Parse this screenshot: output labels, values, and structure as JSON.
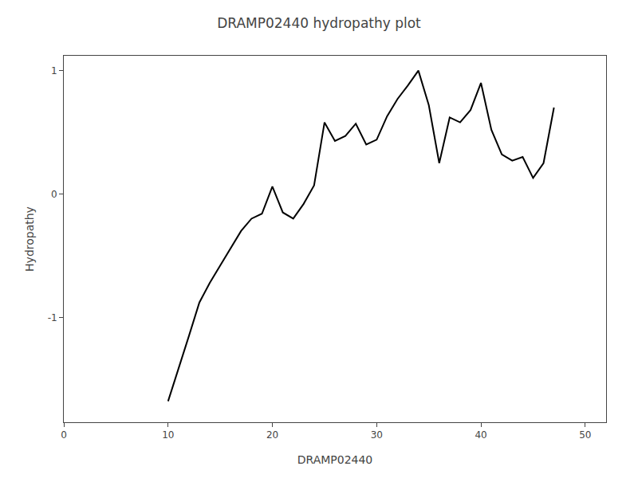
{
  "chart_data": {
    "type": "line",
    "title": "DRAMP02440 hydropathy plot",
    "xlabel": "DRAMP02440",
    "ylabel": "Hydropathy",
    "x": [
      10,
      11,
      12,
      13,
      14,
      15,
      16,
      17,
      18,
      19,
      20,
      21,
      22,
      23,
      24,
      25,
      26,
      27,
      28,
      29,
      30,
      31,
      32,
      33,
      34,
      35,
      36,
      37,
      38,
      39,
      40,
      41,
      42,
      43,
      44,
      45,
      46,
      47
    ],
    "values": [
      -1.68,
      -1.42,
      -1.15,
      -0.88,
      -0.72,
      -0.58,
      -0.44,
      -0.3,
      -0.2,
      -0.16,
      0.06,
      -0.15,
      -0.2,
      -0.08,
      0.07,
      0.58,
      0.43,
      0.47,
      0.57,
      0.4,
      0.44,
      0.63,
      0.77,
      0.88,
      1.0,
      0.72,
      0.25,
      0.62,
      0.58,
      0.68,
      0.9,
      0.52,
      0.32,
      0.27,
      0.3,
      0.13,
      0.25,
      0.7
    ],
    "color": "#000000",
    "xlim": [
      0,
      52
    ],
    "xticks": [
      0,
      10,
      20,
      30,
      40,
      50
    ],
    "ylim": [
      -1.85,
      1.12
    ],
    "yticks": [
      -1,
      0,
      1
    ],
    "grid": false
  }
}
